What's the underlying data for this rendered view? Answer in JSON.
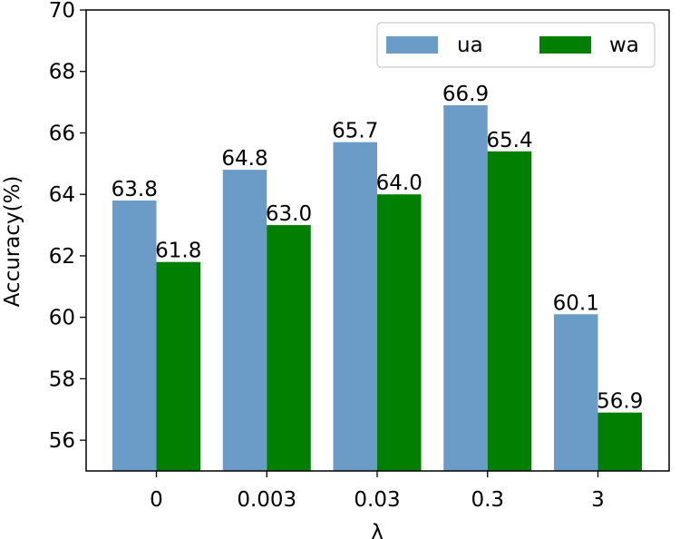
{
  "chart_data": {
    "type": "bar",
    "categories": [
      "0",
      "0.003",
      "0.03",
      "0.3",
      "3"
    ],
    "series": [
      {
        "name": "ua",
        "color": "#6b9bc7",
        "values": [
          63.8,
          64.8,
          65.7,
          66.9,
          60.1
        ]
      },
      {
        "name": "wa",
        "color": "#007f00",
        "values": [
          61.8,
          63.0,
          64.0,
          65.4,
          56.9
        ]
      }
    ],
    "data_labels": [
      [
        "63.8",
        "64.8",
        "65.7",
        "66.9",
        "60.1"
      ],
      [
        "61.8",
        "63.0",
        "64.0",
        "65.4",
        "56.9"
      ]
    ],
    "xlabel": "λ",
    "ylabel": "Accuracy(%)",
    "ylim": [
      55,
      70
    ],
    "yticks": [
      56,
      58,
      60,
      62,
      64,
      66,
      68,
      70
    ],
    "grid": false,
    "legend": "top-right"
  }
}
